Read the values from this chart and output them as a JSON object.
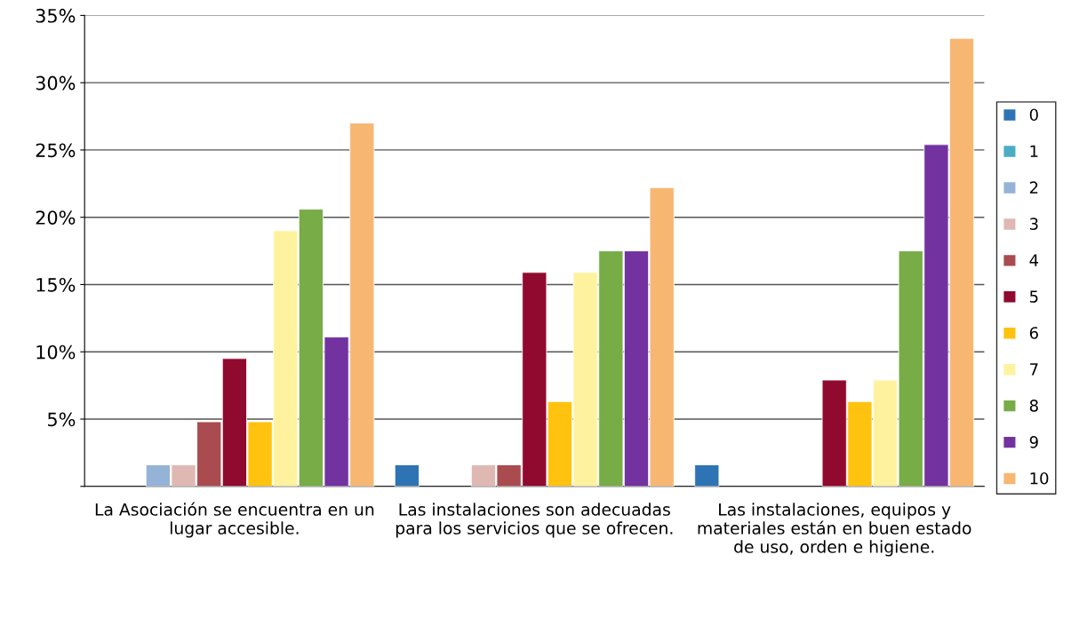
{
  "chart_data": {
    "type": "bar",
    "categories": [
      "La Asociación se encuentra en un lugar accesible.",
      "Las instalaciones son adecuadas para los servicios que se ofrecen.",
      "Las instalaciones, equipos y materiales están en buen estado de uso, orden e higiene."
    ],
    "series": [
      {
        "name": "0",
        "color": "#2e74b5",
        "values": [
          null,
          1.6,
          1.6
        ]
      },
      {
        "name": "1",
        "color": "#4bacc6",
        "values": [
          null,
          null,
          null
        ]
      },
      {
        "name": "2",
        "color": "#95b3d7",
        "values": [
          1.6,
          null,
          null
        ]
      },
      {
        "name": "3",
        "color": "#dfb8b4",
        "values": [
          1.6,
          1.6,
          null
        ]
      },
      {
        "name": "4",
        "color": "#a94b4f",
        "values": [
          4.8,
          1.6,
          null
        ]
      },
      {
        "name": "5",
        "color": "#900a2f",
        "values": [
          9.5,
          15.9,
          7.9
        ]
      },
      {
        "name": "6",
        "color": "#ffc20e",
        "values": [
          4.8,
          6.3,
          6.3
        ]
      },
      {
        "name": "7",
        "color": "#fff29e",
        "values": [
          19.0,
          15.9,
          7.9
        ]
      },
      {
        "name": "8",
        "color": "#77ac47",
        "values": [
          20.6,
          17.5,
          17.5
        ]
      },
      {
        "name": "9",
        "color": "#7232a0",
        "values": [
          11.1,
          17.5,
          25.4
        ]
      },
      {
        "name": "10",
        "color": "#f7b772",
        "values": [
          27.0,
          22.2,
          33.3
        ]
      }
    ],
    "ylim": [
      0,
      35
    ],
    "yticks": [
      {
        "value": 0,
        "label": null
      },
      {
        "value": 5,
        "label": "5%"
      },
      {
        "value": 10,
        "label": "10%"
      },
      {
        "value": 15,
        "label": "15%"
      },
      {
        "value": 20,
        "label": "20%"
      },
      {
        "value": 25,
        "label": "25%"
      },
      {
        "value": 30,
        "label": "30%"
      },
      {
        "value": 35,
        "label": "35%"
      }
    ],
    "grid": "y",
    "legend": "right"
  }
}
